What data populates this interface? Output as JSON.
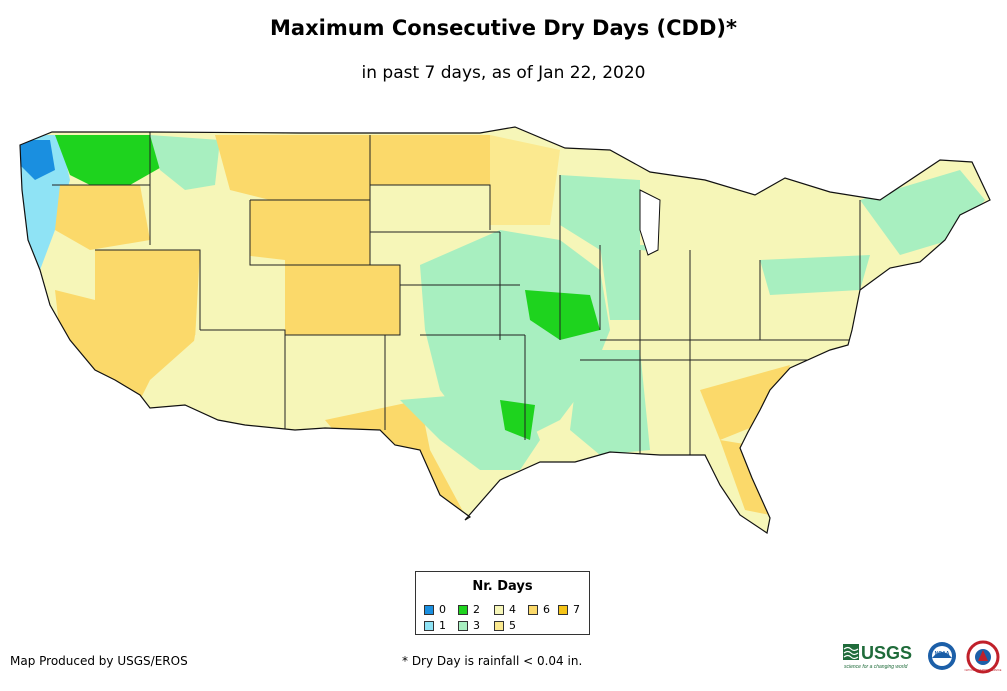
{
  "title": "Maximum Consecutive Dry Days (CDD)*",
  "subtitle": "in past 7 days, as of Jan 22, 2020",
  "legend": {
    "title": "Nr. Days",
    "items": [
      {
        "label": "0",
        "color": "#1a8fe0"
      },
      {
        "label": "1",
        "color": "#8fe3f5"
      },
      {
        "label": "2",
        "color": "#1ed31e"
      },
      {
        "label": "3",
        "color": "#a8efc0"
      },
      {
        "label": "4",
        "color": "#f6f6b8"
      },
      {
        "label": "5",
        "color": "#fbe98f"
      },
      {
        "label": "6",
        "color": "#fbd96a"
      },
      {
        "label": "7",
        "color": "#f5c418"
      }
    ]
  },
  "footer": {
    "credit": "Map Produced by USGS/EROS",
    "note": "* Dry Day is rainfall < 0.04 in."
  },
  "logos": {
    "usgs": "USGS",
    "usgs_tagline": "science for a changing world",
    "noaa": "NOAA",
    "nws": "NATIONAL WEATHER SERVICE"
  }
}
